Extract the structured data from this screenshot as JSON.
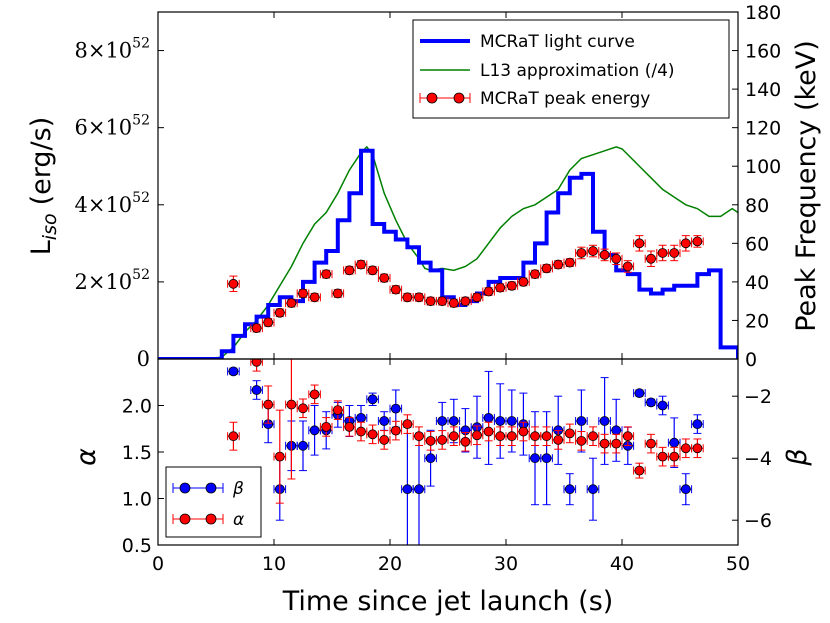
{
  "chart_data": [
    {
      "type": "line",
      "panel": "top",
      "xlabel": "Time since jet launch (s)",
      "xlim": [
        0,
        50
      ],
      "xticks": [
        0,
        10,
        20,
        30,
        40,
        50
      ],
      "ylabel_left": "L",
      "ylabel_left_sub": "iso",
      "ylabel_left_unit": "(erg/s)",
      "ylim_left": [
        0,
        9e+52
      ],
      "yticks_left": [
        {
          "value": 0,
          "mant": "0",
          "exp": ""
        },
        {
          "value": 2e+52,
          "mant": "2×10",
          "exp": "52"
        },
        {
          "value": 4e+52,
          "mant": "4×10",
          "exp": "52"
        },
        {
          "value": 6e+52,
          "mant": "6×10",
          "exp": "52"
        },
        {
          "value": 8e+52,
          "mant": "8×10",
          "exp": "52"
        }
      ],
      "ylabel_right": "Peak Frequency (keV)",
      "ylim_right": [
        0,
        180
      ],
      "yticks_right": [
        0,
        20,
        40,
        60,
        80,
        100,
        120,
        140,
        160,
        180
      ],
      "legend_position": "top-right",
      "colors": {
        "lc": "#0000ff",
        "l13": "#008000",
        "peak": "#ff0000"
      },
      "series": [
        {
          "name": "MCRaT light curve",
          "kind": "step",
          "axis": "left",
          "x": [
            0,
            5.5,
            6.5,
            7.5,
            8.5,
            9.5,
            10.5,
            11.5,
            12.5,
            13.5,
            14.5,
            15.5,
            16.5,
            17.5,
            18.5,
            19.5,
            20.5,
            21.5,
            22.5,
            23.5,
            24.5,
            25.5,
            26.5,
            27.5,
            28.5,
            29.5,
            30.5,
            31.5,
            32.5,
            33.5,
            34.5,
            35.5,
            36.5,
            37.5,
            38.5,
            39.5,
            40.5,
            41.5,
            42.5,
            43.5,
            44.5,
            45.5,
            46.5,
            47.5,
            48.5,
            50
          ],
          "y": [
            0,
            2e+51,
            6e+51,
            9e+51,
            1.1e+52,
            1.4e+52,
            1.6e+52,
            1.5e+52,
            2e+52,
            2.5e+52,
            2.8e+52,
            3.6e+52,
            4.3e+52,
            5.4e+52,
            3.5e+52,
            3.3e+52,
            3.1e+52,
            2.9e+52,
            2.5e+52,
            2.3e+52,
            1.6e+52,
            1.4e+52,
            1.5e+52,
            1.7e+52,
            2e+52,
            2.1e+52,
            2.1e+52,
            2.5e+52,
            3e+52,
            3.8e+52,
            4.3e+52,
            4.7e+52,
            4.8e+52,
            3.3e+52,
            2.7e+52,
            2.3e+52,
            2.2e+52,
            1.8e+52,
            1.7e+52,
            1.8e+52,
            1.9e+52,
            1.9e+52,
            2.2e+52,
            2.3e+52,
            3e+51,
            0
          ]
        },
        {
          "name": "L13 approximation (/4)",
          "kind": "line",
          "axis": "left",
          "x": [
            0,
            4,
            5.5,
            6.5,
            7.5,
            8.5,
            9.5,
            10.5,
            11.5,
            12.5,
            13.5,
            14.5,
            15.5,
            16.5,
            17.5,
            18.0,
            18.5,
            19.0,
            19.5,
            20.5,
            21.5,
            22.5,
            23.0,
            23.5,
            24.5,
            25.5,
            26.5,
            27.5,
            28.5,
            29.5,
            30.5,
            31.5,
            32.5,
            33.5,
            34.5,
            35.5,
            36.5,
            37.5,
            38.5,
            39.5,
            40.0,
            40.5,
            41.5,
            42.5,
            43.5,
            44.5,
            45.5,
            46.5,
            47.5,
            48.5,
            49.5,
            50
          ],
          "y": [
            0,
            0,
            5e+50,
            3e+51,
            7e+51,
            1e+52,
            1.4e+52,
            1.9e+52,
            2.4e+52,
            3e+52,
            3.5e+52,
            3.8e+52,
            4.3e+52,
            4.9e+52,
            5.35e+52,
            5.5e+52,
            5.3e+52,
            4.8e+52,
            4.3e+52,
            3.6e+52,
            3e+52,
            2.6e+52,
            2.35e+52,
            2.3e+52,
            2.35e+52,
            2.3e+52,
            2.4e+52,
            2.6e+52,
            3e+52,
            3.4e+52,
            3.7e+52,
            3.9e+52,
            4e+52,
            4.2e+52,
            4.4e+52,
            4.9e+52,
            5.2e+52,
            5.3e+52,
            5.4e+52,
            5.5e+52,
            5.45e+52,
            5.3e+52,
            5e+52,
            4.7e+52,
            4.4e+52,
            4.2e+52,
            4e+52,
            3.9e+52,
            3.7e+52,
            3.7e+52,
            3.9e+52,
            3.8e+52
          ]
        },
        {
          "name": "MCRaT peak energy",
          "kind": "errorbar",
          "axis": "right",
          "x": [
            6.5,
            8.5,
            9.5,
            10.5,
            11.5,
            12.5,
            13.5,
            14.5,
            15.5,
            16.5,
            17.5,
            18.5,
            19.5,
            20.5,
            21.5,
            22.5,
            23.5,
            24.5,
            25.5,
            26.5,
            27.5,
            28.5,
            29.5,
            30.5,
            31.5,
            32.5,
            33.5,
            34.5,
            35.5,
            36.5,
            37.5,
            38.5,
            39.5,
            40.5,
            41.5,
            42.5,
            43.5,
            44.5,
            45.5,
            46.5
          ],
          "y": [
            39,
            16,
            19,
            24,
            29,
            34,
            32,
            44,
            34,
            46,
            49,
            46,
            42,
            36,
            32,
            32,
            30,
            30,
            29,
            30,
            32,
            35,
            37,
            38,
            40,
            44,
            47,
            49,
            50,
            55,
            56,
            54,
            52,
            48,
            60,
            52,
            55,
            55,
            60,
            61
          ],
          "yerr": [
            4,
            2,
            2,
            2,
            2,
            2,
            2,
            2,
            2,
            2,
            2,
            2,
            2,
            2,
            2,
            2,
            2,
            2,
            2,
            2,
            2,
            2,
            2,
            2,
            2,
            2,
            2,
            2,
            2,
            3,
            3,
            3,
            3,
            3,
            4,
            4,
            4,
            4,
            4,
            3
          ],
          "xerr": 0.5
        }
      ]
    },
    {
      "type": "scatter",
      "panel": "bottom",
      "xlabel": "Time since jet launch (s)",
      "xlim": [
        0,
        50
      ],
      "xticks": [
        0,
        10,
        20,
        30,
        40,
        50
      ],
      "ylabel_left": "α",
      "ylim_left": [
        0.5,
        2.5
      ],
      "yticks_left": [
        0.5,
        1.0,
        1.5,
        2.0
      ],
      "yticks_left_labels": [
        "0.5",
        "1.0",
        "1.5",
        "2.0"
      ],
      "ylabel_right": "β",
      "ylim_right": [
        -6.8,
        -0.8
      ],
      "yticks_right": [
        -6,
        -4,
        -2
      ],
      "yticks_right_labels": [
        "−6",
        "−4",
        "−2"
      ],
      "legend_position": "bottom-left",
      "colors": {
        "beta": "#0000ff",
        "alpha": "#ff0000"
      },
      "series": [
        {
          "name": "β",
          "axis": "right",
          "x": [
            6.5,
            8.5,
            9.5,
            10.5,
            11.5,
            12.5,
            13.5,
            14.5,
            15.5,
            16.5,
            17.5,
            18.5,
            19.5,
            20.5,
            21.5,
            22.5,
            23.5,
            24.5,
            25.5,
            26.5,
            27.5,
            28.5,
            29.5,
            30.5,
            31.5,
            32.5,
            33.5,
            34.5,
            35.5,
            36.5,
            37.5,
            38.5,
            39.5,
            40.5,
            41.5,
            42.5,
            43.5,
            44.5,
            45.5,
            46.5
          ],
          "y": [
            -1.2,
            -1.8,
            -2.9,
            -5.0,
            -3.6,
            -3.6,
            -3.1,
            -3.1,
            -2.6,
            -2.8,
            -2.7,
            -2.1,
            -2.8,
            -2.4,
            -5.0,
            -5.0,
            -4.0,
            -2.8,
            -2.8,
            -3.1,
            -3.0,
            -2.7,
            -2.8,
            -2.8,
            -2.9,
            -4.0,
            -4.0,
            -3.1,
            -5.0,
            -2.8,
            -5.0,
            -2.8,
            -3.1,
            -3.6,
            -1.9,
            -2.2,
            -2.3,
            -3.5,
            -5.0,
            -2.9
          ],
          "yerr": [
            0.1,
            0.3,
            0.6,
            1.0,
            0.8,
            0.8,
            0.8,
            0.6,
            0.4,
            0.5,
            0.4,
            0.2,
            0.3,
            0.6,
            2.0,
            1.8,
            0.9,
            0.6,
            0.7,
            0.7,
            1.0,
            1.5,
            1.2,
            1.0,
            1.0,
            1.5,
            1.5,
            1.1,
            0.5,
            1.0,
            1.0,
            1.4,
            1.0,
            0.6,
            0.1,
            0.1,
            0.3,
            0.8,
            0.5,
            0.3
          ],
          "xerr": 0.5
        },
        {
          "name": "α",
          "axis": "left",
          "x": [
            6.5,
            8.5,
            9.5,
            10.5,
            11.5,
            12.5,
            13.5,
            14.5,
            15.5,
            16.5,
            17.5,
            18.5,
            19.5,
            20.5,
            21.5,
            22.5,
            23.5,
            24.5,
            25.5,
            26.5,
            27.5,
            28.5,
            29.5,
            30.5,
            31.5,
            32.5,
            33.5,
            34.5,
            35.5,
            36.5,
            37.5,
            38.5,
            39.5,
            40.5,
            41.5,
            42.5,
            43.5,
            44.5,
            45.5,
            46.5
          ],
          "y": [
            1.67,
            2.47,
            2.01,
            1.45,
            2.01,
            1.97,
            2.12,
            1.77,
            1.95,
            1.77,
            1.72,
            1.69,
            1.63,
            1.73,
            1.8,
            1.67,
            1.62,
            1.63,
            1.67,
            1.61,
            1.68,
            1.72,
            1.67,
            1.67,
            1.72,
            1.67,
            1.67,
            1.63,
            1.7,
            1.62,
            1.67,
            1.59,
            1.59,
            1.67,
            1.3,
            1.59,
            1.45,
            1.45,
            1.54,
            1.54
          ],
          "yerr": [
            0.15,
            0.1,
            0.2,
            0.5,
            0.8,
            0.1,
            0.1,
            0.1,
            0.1,
            0.1,
            0.1,
            0.1,
            0.1,
            0.1,
            0.1,
            0.1,
            0.1,
            0.1,
            0.1,
            0.1,
            0.1,
            0.1,
            0.1,
            0.1,
            0.1,
            0.1,
            0.1,
            0.1,
            0.1,
            0.1,
            0.1,
            0.1,
            0.1,
            0.1,
            0.08,
            0.1,
            0.1,
            0.1,
            0.1,
            0.1
          ],
          "xerr": 0.5
        }
      ]
    }
  ]
}
